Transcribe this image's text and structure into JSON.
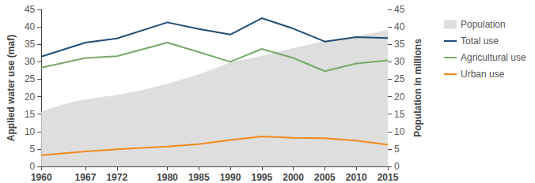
{
  "chart_data": {
    "type": "line",
    "x_label": "",
    "y_label": "Applied water use (maf)",
    "y2_label": "Population in millions",
    "xlim": [
      1960,
      2015
    ],
    "xticks": [
      1960,
      1967,
      1972,
      1980,
      1985,
      1990,
      1995,
      2000,
      2005,
      2010,
      2015
    ],
    "ylim": [
      0,
      45
    ],
    "yticks": [
      0,
      5,
      10,
      15,
      20,
      25,
      30,
      35,
      40,
      45
    ],
    "y2lim": [
      0,
      45
    ],
    "y2ticks": [
      0,
      5,
      10,
      15,
      20,
      25,
      30,
      35,
      40,
      45
    ],
    "grid": false,
    "legend": "right",
    "series": [
      {
        "name": "Population",
        "type": "area",
        "axis": "y2",
        "color": "#dedede",
        "x": [
          1960,
          1963,
          1965,
          1967,
          1970,
          1972,
          1975,
          1980,
          1985,
          1990,
          1995,
          2000,
          2005,
          2010,
          2015
        ],
        "values": [
          15.7,
          17.5,
          18.5,
          19.2,
          20.0,
          20.5,
          21.5,
          23.7,
          26.4,
          29.8,
          31.7,
          33.9,
          36.0,
          37.3,
          39.1
        ]
      },
      {
        "name": "Total use",
        "type": "line",
        "color": "#1f4e79",
        "x": [
          1960,
          1967,
          1972,
          1980,
          1985,
          1990,
          1995,
          2000,
          2005,
          2010,
          2015
        ],
        "values": [
          31.5,
          35.5,
          36.7,
          41.3,
          39.4,
          37.8,
          42.5,
          39.5,
          35.8,
          37.1,
          36.8
        ]
      },
      {
        "name": "Agricultural use",
        "type": "line",
        "color": "#78a86b",
        "x": [
          1960,
          1967,
          1972,
          1980,
          1985,
          1990,
          1995,
          2000,
          2005,
          2010,
          2015
        ],
        "values": [
          28.3,
          31.1,
          31.6,
          35.5,
          32.8,
          30.0,
          33.7,
          31.1,
          27.3,
          29.5,
          30.4
        ]
      },
      {
        "name": "Urban use",
        "type": "line",
        "color": "#f08a1c",
        "x": [
          1960,
          1967,
          1972,
          1980,
          1985,
          1990,
          1995,
          2000,
          2005,
          2010,
          2015
        ],
        "values": [
          3.2,
          4.3,
          4.9,
          5.7,
          6.4,
          7.6,
          8.6,
          8.2,
          8.1,
          7.4,
          6.2
        ]
      }
    ]
  }
}
